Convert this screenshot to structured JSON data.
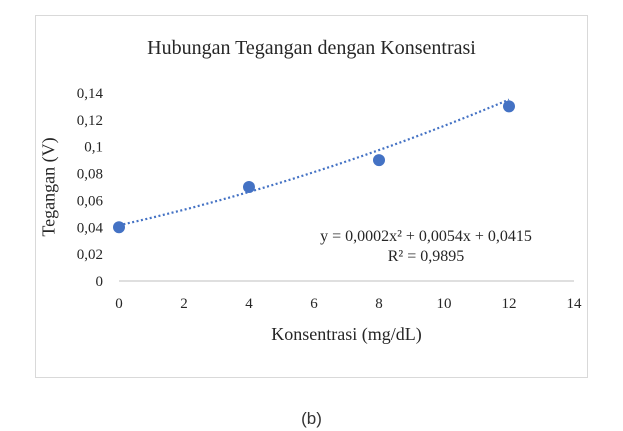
{
  "chart_data": {
    "type": "scatter",
    "title": "Hubungan Tegangan dengan Konsentrasi",
    "xlabel": "Konsentrasi (mg/dL)",
    "ylabel": "Tegangan  (V)",
    "xlim": [
      0,
      14
    ],
    "ylim": [
      0,
      0.14
    ],
    "x_ticks": [
      "0",
      "2",
      "4",
      "6",
      "8",
      "10",
      "12",
      "14"
    ],
    "y_ticks": [
      "0",
      "0,02",
      "0,04",
      "0,06",
      "0,08",
      "0,1",
      "0,12",
      "0,14"
    ],
    "grid": false,
    "series": [
      {
        "x": [
          0,
          4,
          8,
          12
        ],
        "y": [
          0.04,
          0.07,
          0.09,
          0.13
        ],
        "color": "#4472c4"
      }
    ],
    "trendline": {
      "type": "polynomial",
      "coefficients": [
        0.0002,
        0.0054,
        0.0415
      ],
      "color": "#4472c4",
      "equation_label": "y = 0,0002x² + 0,0054x + 0,0415",
      "r2_label": "R² = 0,9895"
    }
  },
  "caption": "(b)"
}
